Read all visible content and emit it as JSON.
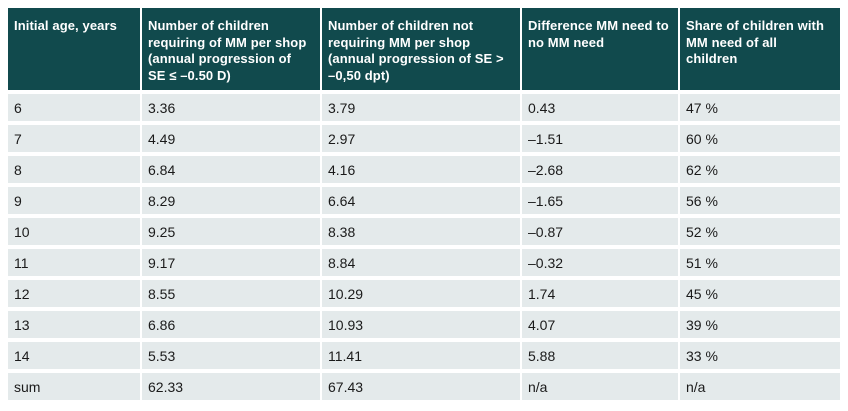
{
  "colors": {
    "header_bg": "#114a4d",
    "header_text": "#ffffff",
    "row_bg": "#e4eaeb",
    "body_text": "#1a1a1a",
    "page_bg": "#ffffff"
  },
  "table": {
    "columns": [
      "Initial age, years",
      "Number of children requiring of MM per shop (annual progression of SE ≤ –0.50 D)",
      "Number of children not requiring MM per shop (annual progression of SE > –0,50 dpt)",
      "Difference MM need to no MM need",
      "Share of children with MM need of all children"
    ],
    "rows": [
      [
        "6",
        "3.36",
        "3.79",
        "0.43",
        "47 %"
      ],
      [
        "7",
        "4.49",
        "2.97",
        "–1.51",
        "60 %"
      ],
      [
        "8",
        "6.84",
        "4.16",
        "–2.68",
        "62 %"
      ],
      [
        "9",
        "8.29",
        "6.64",
        "–1.65",
        "56 %"
      ],
      [
        "10",
        "9.25",
        "8.38",
        "–0.87",
        "52 %"
      ],
      [
        "11",
        "9.17",
        "8.84",
        "–0.32",
        "51 %"
      ],
      [
        "12",
        "8.55",
        "10.29",
        "1.74",
        "45 %"
      ],
      [
        "13",
        "6.86",
        "10.93",
        "4.07",
        "39 %"
      ],
      [
        "14",
        "5.53",
        "11.41",
        "5.88",
        "33 %"
      ],
      [
        "sum",
        "62.33",
        "67.43",
        "n/a",
        "n/a"
      ]
    ]
  }
}
